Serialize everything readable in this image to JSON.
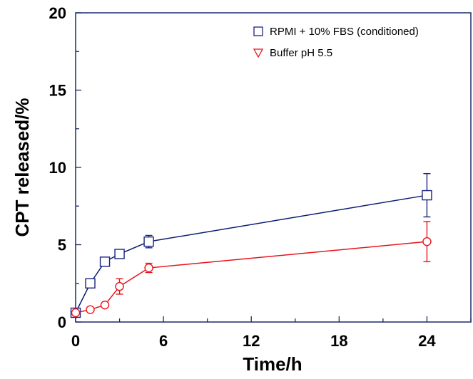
{
  "chart_data": {
    "type": "line",
    "xlabel": "Time/h",
    "ylabel": "CPT released/%",
    "xlim": [
      0,
      27
    ],
    "ylim": [
      0,
      20
    ],
    "x_ticks": [
      0,
      6,
      12,
      18,
      24
    ],
    "x_tick_labels": [
      "0",
      "6",
      "12",
      "18",
      "24"
    ],
    "y_ticks": [
      0,
      5,
      10,
      15,
      20
    ],
    "y_tick_labels": [
      "0",
      "5",
      "10",
      "15",
      "20"
    ],
    "grid": false,
    "legend_position": "top-right",
    "series": [
      {
        "name": "RPMI + 10% FBS (conditioned)",
        "marker": "square",
        "color": "#0b1f6e",
        "marker_color": "#1a237e",
        "x": [
          0,
          1,
          2,
          3,
          5,
          24
        ],
        "y": [
          0.6,
          2.5,
          3.9,
          4.4,
          5.2,
          8.2
        ],
        "y_err": [
          0,
          0,
          0,
          0,
          0.4,
          1.4
        ]
      },
      {
        "name": "Buffer pH 5.5",
        "marker": "circle",
        "legend_marker": "triangle-down",
        "color": "#e8141c",
        "marker_color": "#e8141c",
        "x": [
          0,
          1,
          2,
          3,
          5,
          24
        ],
        "y": [
          0.6,
          0.8,
          1.1,
          2.3,
          3.5,
          5.2
        ],
        "y_err": [
          0,
          0,
          0,
          0.5,
          0.3,
          1.3
        ]
      }
    ]
  }
}
